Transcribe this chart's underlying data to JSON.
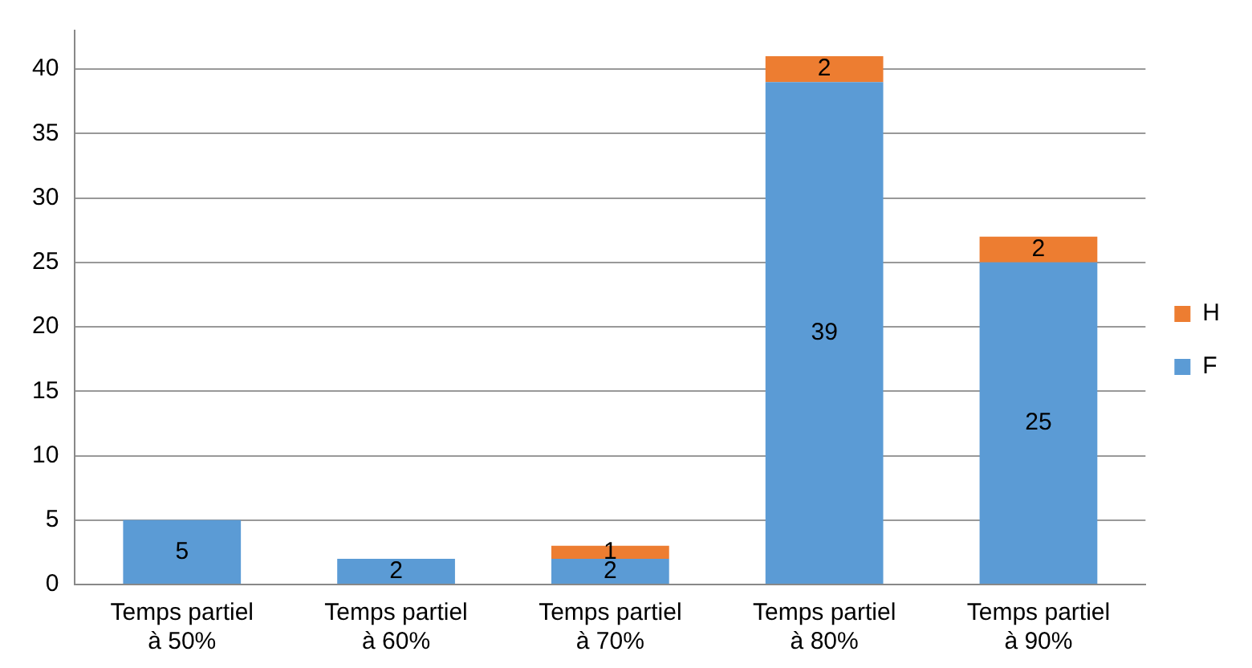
{
  "chart_data": {
    "type": "bar",
    "stacked": true,
    "categories": [
      "Temps partiel à 50%",
      "Temps partiel à 60%",
      "Temps partiel à 70%",
      "Temps partiel à 80%",
      "Temps partiel à 90%"
    ],
    "series": [
      {
        "name": "F",
        "color": "#5b9bd5",
        "values": [
          5,
          2,
          2,
          39,
          25
        ]
      },
      {
        "name": "H",
        "color": "#ed7d31",
        "values": [
          null,
          null,
          1,
          2,
          2
        ]
      }
    ],
    "ylim": [
      0,
      43
    ],
    "yticks": [
      0,
      5,
      10,
      15,
      20,
      25,
      30,
      35,
      40
    ],
    "grid": "y",
    "legend": "right",
    "data_labels": true
  }
}
